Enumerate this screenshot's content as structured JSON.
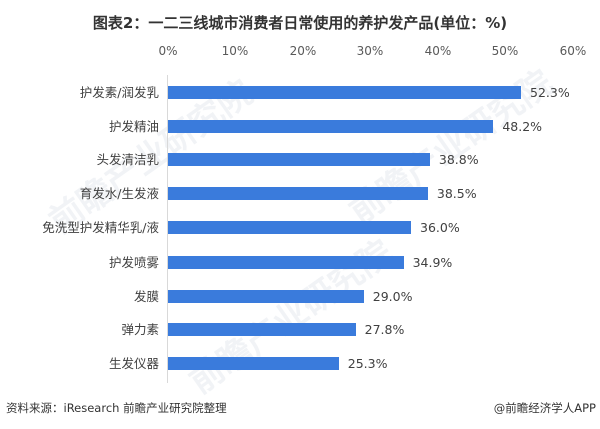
{
  "title": "图表2：一二三线城市消费者日常使用的养护发产品(单位：%)",
  "chart_data": {
    "type": "bar",
    "orientation": "horizontal",
    "title": "图表2：一二三线城市消费者日常使用的养护发产品(单位：%)",
    "xlabel": "",
    "ylabel": "",
    "unit": "%",
    "categories": [
      "护发素/润发乳",
      "护发精油",
      "头发清洁乳",
      "育发水/生发液",
      "免洗型护发精华乳/液",
      "护发喷雾",
      "发膜",
      "弹力素",
      "生发仪器"
    ],
    "values": [
      52.3,
      48.2,
      38.8,
      38.5,
      36.0,
      34.9,
      29.0,
      27.8,
      25.3
    ],
    "value_labels": [
      "52.3%",
      "48.2%",
      "38.8%",
      "38.5%",
      "36.0%",
      "34.9%",
      "29.0%",
      "27.8%",
      "25.3%"
    ],
    "xlim": [
      0,
      60
    ],
    "x_ticks": [
      "0%",
      "10%",
      "20%",
      "30%",
      "40%",
      "50%",
      "60%"
    ],
    "x_axis_position": "top",
    "grid": false,
    "legend": null,
    "bar_color": "#3a7bdc"
  },
  "footer": {
    "source": "资料来源：iResearch  前瞻产业研究院整理",
    "credit": "@前瞻经济学人APP"
  },
  "watermark": "前瞻产业研究院"
}
